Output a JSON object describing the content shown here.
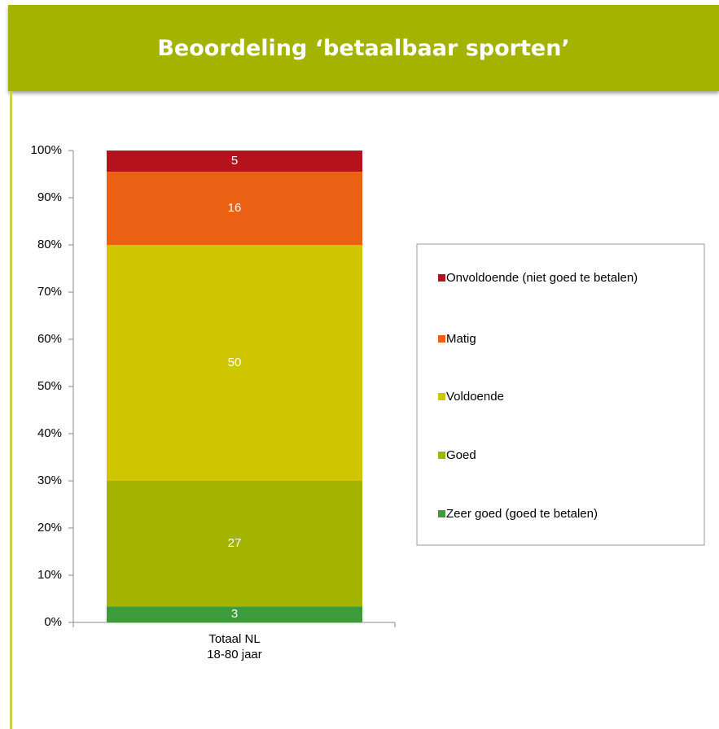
{
  "chart_data": {
    "type": "stacked_bar",
    "title": "Beoordeling ‘betaalbaar sporten’",
    "categories": [
      "Totaal NL\n18-80 jaar"
    ],
    "series": [
      {
        "name": "Zeer goed (goed te betalen)",
        "color": "#3c9b3a",
        "values": [
          3.4
        ],
        "value_labels": [
          "3"
        ]
      },
      {
        "name": "Goed",
        "color": "#a3b300",
        "values": [
          26.6
        ],
        "value_labels": [
          "27"
        ]
      },
      {
        "name": "Voldoende",
        "color": "#cfc500",
        "values": [
          50
        ],
        "value_labels": [
          "50"
        ]
      },
      {
        "name": "Matig",
        "color": "#ea6113",
        "values": [
          15.5
        ],
        "value_labels": [
          "16"
        ]
      },
      {
        "name": "Onvoldoende (niet goed te betalen)",
        "color": "#b5121e",
        "values": [
          4.5
        ],
        "value_labels": [
          "5"
        ]
      }
    ],
    "ylim": [
      0,
      100
    ],
    "yticks": [
      {
        "value": 0,
        "label": "0%"
      },
      {
        "value": 10,
        "label": "10%"
      },
      {
        "value": 20,
        "label": "20%"
      },
      {
        "value": 30,
        "label": "30%"
      },
      {
        "value": 40,
        "label": "40%"
      },
      {
        "value": 50,
        "label": "50%"
      },
      {
        "value": 60,
        "label": "60%"
      },
      {
        "value": 70,
        "label": "70%"
      },
      {
        "value": 80,
        "label": "80%"
      },
      {
        "value": 90,
        "label": "90%"
      },
      {
        "value": 100,
        "label": "100%"
      }
    ],
    "legend": "right"
  }
}
